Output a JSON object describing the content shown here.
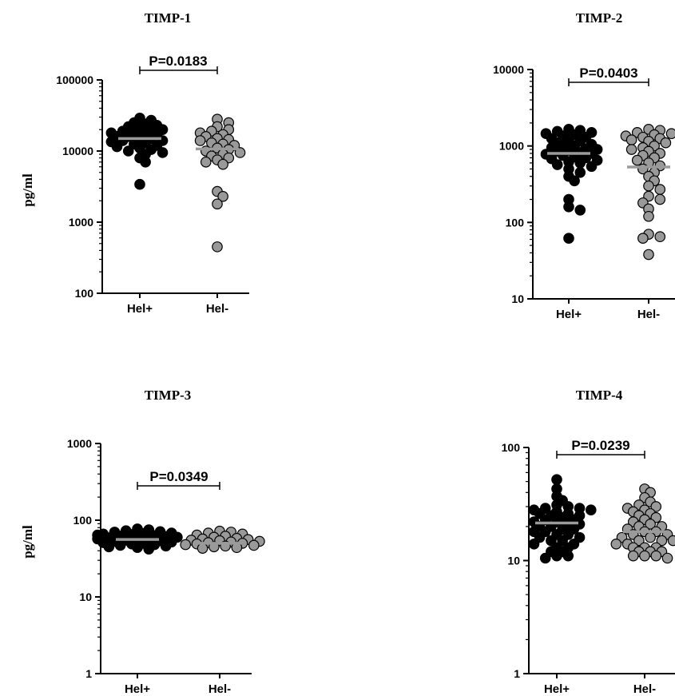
{
  "chart_data": [
    {
      "type": "scatter",
      "title": "TIMP-1",
      "ylabel": "pg/ml",
      "yscale": "log",
      "ylim": [
        100,
        100000
      ],
      "yticks": [
        "100",
        "1000",
        "10000",
        "100000"
      ],
      "categories": [
        "Hel+",
        "Hel-"
      ],
      "pvalue": "P=0.0183",
      "series": [
        {
          "name": "Hel+",
          "color": "#000000",
          "mean": 15000,
          "values": [
            29000,
            27000,
            25000,
            24000,
            23000,
            22000,
            21000,
            20000,
            20000,
            19000,
            18000,
            18000,
            17000,
            17000,
            16000,
            16000,
            15000,
            15000,
            14000,
            14000,
            13500,
            13000,
            12500,
            12000,
            11500,
            11000,
            10500,
            10000,
            9500,
            9000,
            8000,
            7000,
            3400
          ]
        },
        {
          "name": "Hel-",
          "color": "#999999",
          "mean": 10700,
          "values": [
            28000,
            25000,
            22000,
            20000,
            19000,
            18000,
            17000,
            16000,
            15000,
            14500,
            14000,
            13000,
            12500,
            12000,
            11000,
            10500,
            10000,
            9500,
            9000,
            8500,
            8000,
            7500,
            7000,
            6500,
            2700,
            2300,
            1800,
            450
          ]
        }
      ]
    },
    {
      "type": "scatter",
      "title": "TIMP-2",
      "ylabel": "",
      "yscale": "log",
      "ylim": [
        10,
        10000
      ],
      "yticks": [
        "10",
        "100",
        "1000",
        "10000"
      ],
      "categories": [
        "Hel+",
        "Hel-"
      ],
      "pvalue": "P=0.0403",
      "series": [
        {
          "name": "Hel+",
          "color": "#000000",
          "mean": 800,
          "values": [
            1650,
            1600,
            1550,
            1500,
            1450,
            1400,
            1350,
            1300,
            1250,
            1200,
            1150,
            1100,
            1050,
            1000,
            980,
            950,
            920,
            900,
            880,
            850,
            820,
            800,
            780,
            750,
            720,
            700,
            680,
            650,
            620,
            600,
            570,
            540,
            500,
            450,
            400,
            350,
            200,
            160,
            145,
            62
          ]
        },
        {
          "name": "Hel-",
          "color": "#999999",
          "mean": 530,
          "values": [
            1650,
            1600,
            1500,
            1450,
            1400,
            1350,
            1300,
            1250,
            1200,
            1150,
            1100,
            1000,
            950,
            900,
            850,
            800,
            750,
            700,
            650,
            600,
            550,
            500,
            450,
            400,
            350,
            300,
            270,
            220,
            200,
            180,
            150,
            120,
            70,
            65,
            62,
            38
          ]
        }
      ]
    },
    {
      "type": "scatter",
      "title": "TIMP-3",
      "ylabel": "pg/ml",
      "yscale": "log",
      "ylim": [
        1,
        1000
      ],
      "yticks": [
        "1",
        "10",
        "100",
        "1000"
      ],
      "categories": [
        "Hel+",
        "Hel-"
      ],
      "pvalue": "P=0.0349",
      "series": [
        {
          "name": "Hel+",
          "color": "#000000",
          "mean": 56,
          "values": [
            77,
            75,
            73,
            71,
            70,
            68,
            67,
            66,
            65,
            64,
            63,
            62,
            61,
            60,
            59,
            58,
            57,
            56,
            55,
            54,
            53,
            52,
            51,
            50,
            49,
            48,
            47,
            46,
            45,
            44,
            42
          ]
        },
        {
          "name": "Hel-",
          "color": "#999999",
          "mean": 50,
          "values": [
            72,
            70,
            68,
            66,
            64,
            62,
            60,
            58,
            57,
            56,
            55,
            54,
            53,
            52,
            51,
            50,
            49,
            48,
            47,
            46,
            45,
            44,
            43
          ]
        }
      ]
    },
    {
      "type": "scatter",
      "title": "TIMP-4",
      "ylabel": "",
      "yscale": "log",
      "ylim": [
        1,
        100
      ],
      "yticks": [
        "1",
        "10",
        "100"
      ],
      "categories": [
        "Hel+",
        "Hel-"
      ],
      "pvalue": "P=0.0239",
      "series": [
        {
          "name": "Hel+",
          "color": "#000000",
          "mean": 21.5,
          "values": [
            52,
            43,
            37,
            34,
            31,
            30,
            29,
            29,
            28,
            28,
            27,
            26,
            26,
            25,
            25,
            24,
            23,
            23,
            22,
            22,
            21,
            21,
            20,
            20,
            19,
            19,
            18,
            18,
            17,
            17,
            16,
            16,
            15,
            15,
            14,
            14,
            13,
            13,
            12,
            12,
            11,
            11,
            10.5
          ]
        },
        {
          "name": "Hel-",
          "color": "#999999",
          "mean": 18,
          "values": [
            43,
            40,
            36,
            33,
            31,
            30,
            29,
            28,
            27,
            26,
            25,
            24,
            23,
            22,
            21,
            20,
            20,
            19,
            18,
            18,
            17,
            17,
            16,
            16,
            15,
            15,
            15,
            14,
            14,
            14,
            13,
            13,
            13,
            12,
            12,
            12,
            11,
            11,
            11,
            10.5
          ]
        }
      ]
    }
  ]
}
